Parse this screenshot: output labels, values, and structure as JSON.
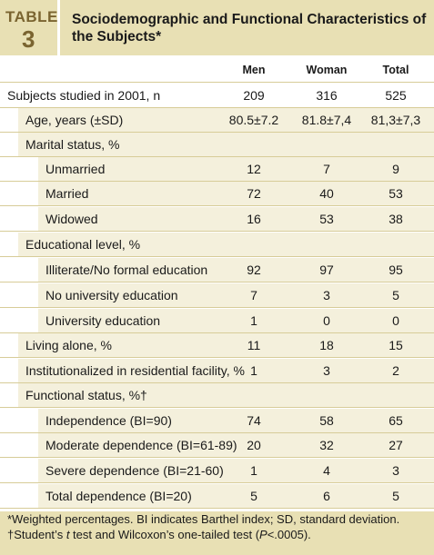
{
  "table": {
    "tag": "TABLE",
    "number": "3",
    "title": "Sociodemographic and Functional Characteristics of the Subjects*",
    "columns": [
      "Men",
      "Woman",
      "Total"
    ]
  },
  "rows": [
    {
      "label": "Subjects studied in 2001, n",
      "men": "209",
      "woman": "316",
      "total": "525"
    },
    {
      "label": "Age, years (±SD)",
      "men": "80.5±7.2",
      "woman": "81.8±7,4",
      "total": "81,3±7,3"
    },
    {
      "label": "Marital status, %",
      "men": "",
      "woman": "",
      "total": ""
    },
    {
      "label": "Unmarried",
      "men": "12",
      "woman": "7",
      "total": "9"
    },
    {
      "label": "Married",
      "men": "72",
      "woman": "40",
      "total": "53"
    },
    {
      "label": "Widowed",
      "men": "16",
      "woman": "53",
      "total": "38"
    },
    {
      "label": "Educational level, %",
      "men": "",
      "woman": "",
      "total": ""
    },
    {
      "label": "Illiterate/No formal education",
      "men": "92",
      "woman": "97",
      "total": "95"
    },
    {
      "label": "No university education",
      "men": "7",
      "woman": "3",
      "total": "5"
    },
    {
      "label": "University education",
      "men": "1",
      "woman": "0",
      "total": "0"
    },
    {
      "label": "Living alone, %",
      "men": "11",
      "woman": "18",
      "total": "15"
    },
    {
      "label": "Institutionalized in residential facility, %",
      "men": "1",
      "woman": "3",
      "total": "2"
    },
    {
      "label": "Functional status, %†",
      "men": "",
      "woman": "",
      "total": ""
    },
    {
      "label": "Independence (BI=90)",
      "men": "74",
      "woman": "58",
      "total": "65"
    },
    {
      "label": "Moderate dependence (BI=61-89)",
      "men": "20",
      "woman": "32",
      "total": "27"
    },
    {
      "label": "Severe dependence (BI=21-60)",
      "men": "1",
      "woman": "4",
      "total": "3"
    },
    {
      "label": "Total dependence (BI=20)",
      "men": "5",
      "woman": "6",
      "total": "5"
    }
  ],
  "footnotes": {
    "line1": "*Weighted percentages. BI indicates Barthel index; SD, standard deviation.",
    "line2_a": "†Student’s ",
    "line2_t": "t",
    "line2_b": " test and Wilcoxon’s one-tailed test (",
    "line2_p": "P",
    "line2_c": "<.0005)."
  }
}
